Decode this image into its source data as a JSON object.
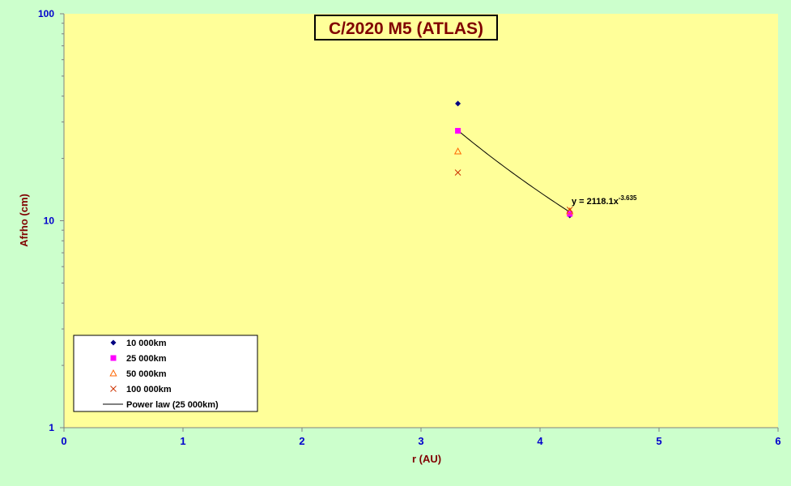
{
  "chart_data": {
    "type": "scatter",
    "title": "C/2020 M5 (ATLAS)",
    "xlabel": "r (AU)",
    "ylabel": "Afrho (cm)",
    "xlim": [
      0,
      6
    ],
    "ylim": [
      1,
      100
    ],
    "yscale": "log",
    "x_ticks": [
      "0",
      "1",
      "2",
      "3",
      "4",
      "5",
      "6"
    ],
    "y_ticks": [
      "1",
      "10",
      "100"
    ],
    "grid": false,
    "legend_position": "bottom-left",
    "colors": {
      "outer_background": "#ccffcc",
      "plot_background": "#ffff99",
      "axis": "#808080"
    },
    "series": [
      {
        "name": "10 000km",
        "marker": "diamond",
        "color": "#000080",
        "x": [
          3.31,
          4.25
        ],
        "y": [
          36.8,
          10.6
        ]
      },
      {
        "name": "25 000km",
        "marker": "square",
        "color": "#ff00ff",
        "x": [
          3.31,
          4.25
        ],
        "y": [
          27.2,
          10.8
        ]
      },
      {
        "name": "50 000km",
        "marker": "triangle",
        "color": "#ff6600",
        "x": [
          3.31,
          4.25
        ],
        "y": [
          21.6,
          11.1
        ]
      },
      {
        "name": "100 000km",
        "marker": "x",
        "color": "#cc3300",
        "x": [
          3.31,
          4.25
        ],
        "y": [
          17.1,
          11.3
        ]
      }
    ],
    "trendline": {
      "name": "Power law (25 000km)",
      "color": "#000000",
      "coefficient": 2118.1,
      "exponent": -3.635,
      "x_range": [
        3.31,
        4.25
      ],
      "equation_prefix": "y = 2118.1x",
      "equation_exponent": "-3.635"
    }
  }
}
